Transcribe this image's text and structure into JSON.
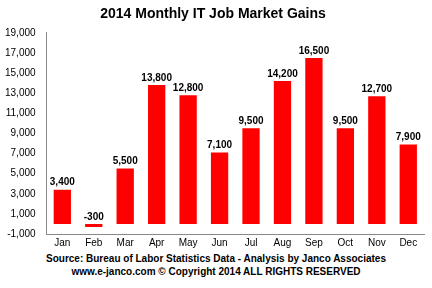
{
  "chart_data": {
    "type": "bar",
    "title": "2014 Monthly IT Job Market Gains",
    "categories": [
      "Jan",
      "Feb",
      "Mar",
      "Apr",
      "May",
      "Jun",
      "Jul",
      "Aug",
      "Sep",
      "Oct",
      "Nov",
      "Dec"
    ],
    "values": [
      3400,
      -300,
      5500,
      13800,
      12800,
      7100,
      9500,
      14200,
      16500,
      9500,
      12700,
      7900
    ],
    "value_labels": [
      "3,400",
      "-300",
      "5,500",
      "13,800",
      "12,800",
      "7,100",
      "9,500",
      "14,200",
      "16,500",
      "9,500",
      "12,700",
      "7,900"
    ],
    "data_labels": true,
    "color": "#ff0000",
    "ylim": [
      -1000,
      19000
    ],
    "yticks": [
      {
        "value": -1000,
        "label": "-1,000"
      },
      {
        "value": 1000,
        "label": "1,000"
      },
      {
        "value": 3000,
        "label": "3,000"
      },
      {
        "value": 5000,
        "label": "5,000"
      },
      {
        "value": 7000,
        "label": "7,000"
      },
      {
        "value": 9000,
        "label": "9,000"
      },
      {
        "value": 11000,
        "label": "11,000"
      },
      {
        "value": 13000,
        "label": "13,000"
      },
      {
        "value": 15000,
        "label": "15,000"
      },
      {
        "value": 17000,
        "label": "17,000"
      },
      {
        "value": 19000,
        "label": "19,000"
      }
    ],
    "grid": false,
    "annotations": [
      "Source: Bureau of Labor Statistics Data - Analysis by Janco Associates",
      "www.e-janco.com © Copyright 2014 ALL RIGHTS RESERVED"
    ]
  }
}
